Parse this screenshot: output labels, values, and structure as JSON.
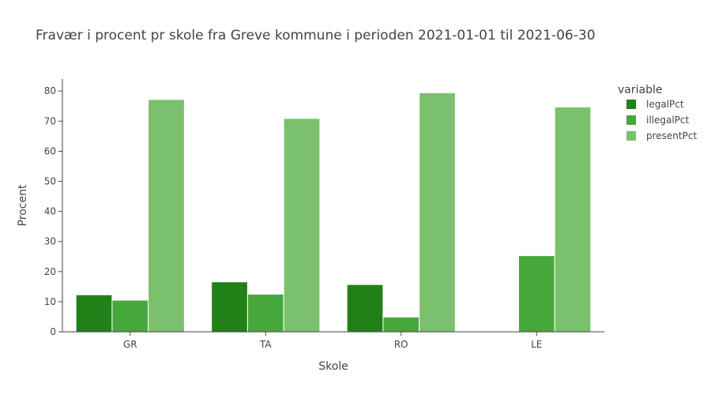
{
  "chart_data": {
    "type": "bar",
    "title": "Fravær i procent pr skole fra Greve kommune i perioden 2021-01-01 til 2021-06-30",
    "xlabel": "Skole",
    "ylabel": "Procent",
    "categories": [
      "GR",
      "TA",
      "RO",
      "LE"
    ],
    "series": [
      {
        "name": "legalPct",
        "values": [
          12.3,
          16.6,
          15.7,
          null
        ],
        "color": "#228019"
      },
      {
        "name": "illegalPct",
        "values": [
          10.5,
          12.5,
          4.9,
          25.3
        ],
        "color": "#46a83a"
      },
      {
        "name": "presentPct",
        "values": [
          77.2,
          70.9,
          79.4,
          74.7
        ],
        "color": "#7bc16d"
      }
    ],
    "ylim": [
      0,
      84
    ],
    "yticks": [
      0,
      10,
      20,
      30,
      40,
      50,
      60,
      70,
      80
    ],
    "legend_title": "variable",
    "legend_position": "top-right",
    "grid": false
  }
}
